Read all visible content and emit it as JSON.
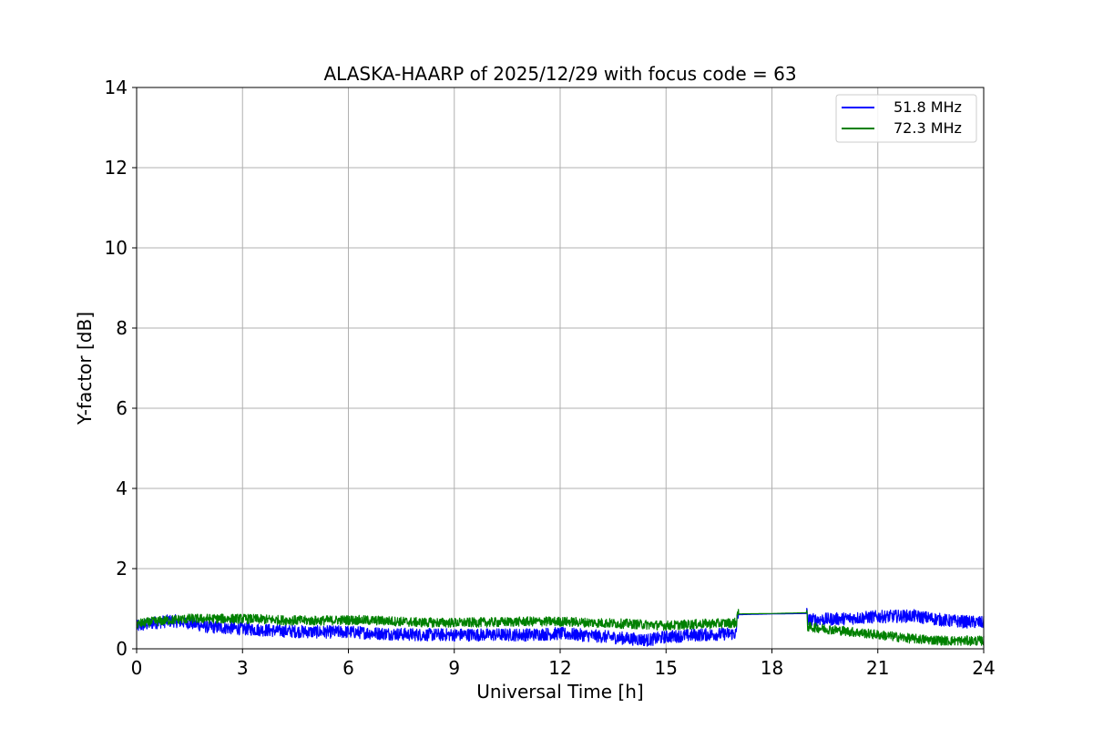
{
  "chart_data": {
    "type": "line",
    "title": "ALASKA-HAARP of 2025/12/29 with focus code = 63",
    "xlabel": "Universal Time [h]",
    "ylabel": "Y-factor [dB]",
    "xlim": [
      0,
      24
    ],
    "ylim": [
      0,
      14
    ],
    "xticks": [
      0,
      3,
      6,
      9,
      12,
      15,
      18,
      21,
      24
    ],
    "yticks": [
      0,
      2,
      4,
      6,
      8,
      10,
      12,
      14
    ],
    "grid": true,
    "legend_position": "top-right",
    "series": [
      {
        "name": "51.8 MHz",
        "color": "#0000ff",
        "noise": 0.16,
        "x": [
          0,
          0.5,
          1,
          1.5,
          2,
          3,
          4,
          5,
          6,
          7,
          8,
          9,
          10,
          11,
          12,
          13,
          14,
          14.5,
          15,
          16,
          17,
          17.01,
          18,
          19,
          19.01,
          20,
          21,
          22,
          23,
          24
        ],
        "y": [
          0.55,
          0.65,
          0.7,
          0.65,
          0.55,
          0.5,
          0.45,
          0.42,
          0.42,
          0.38,
          0.35,
          0.35,
          0.35,
          0.35,
          0.38,
          0.32,
          0.25,
          0.22,
          0.3,
          0.35,
          0.38,
          0.85,
          0.87,
          0.88,
          0.72,
          0.75,
          0.8,
          0.82,
          0.7,
          0.65
        ]
      },
      {
        "name": "72.3 MHz",
        "color": "#008000",
        "noise": 0.12,
        "x": [
          0,
          0.5,
          1,
          1.5,
          2,
          3,
          4,
          5,
          6,
          7,
          8,
          9,
          10,
          11,
          12,
          13,
          14,
          14.5,
          15,
          16,
          17,
          17.01,
          18,
          19,
          19.01,
          20,
          21,
          22,
          23,
          24
        ],
        "y": [
          0.62,
          0.68,
          0.72,
          0.75,
          0.75,
          0.75,
          0.72,
          0.7,
          0.72,
          0.7,
          0.66,
          0.65,
          0.66,
          0.68,
          0.68,
          0.65,
          0.62,
          0.6,
          0.58,
          0.62,
          0.65,
          0.87,
          0.88,
          0.9,
          0.55,
          0.45,
          0.35,
          0.25,
          0.2,
          0.2
        ]
      }
    ]
  }
}
